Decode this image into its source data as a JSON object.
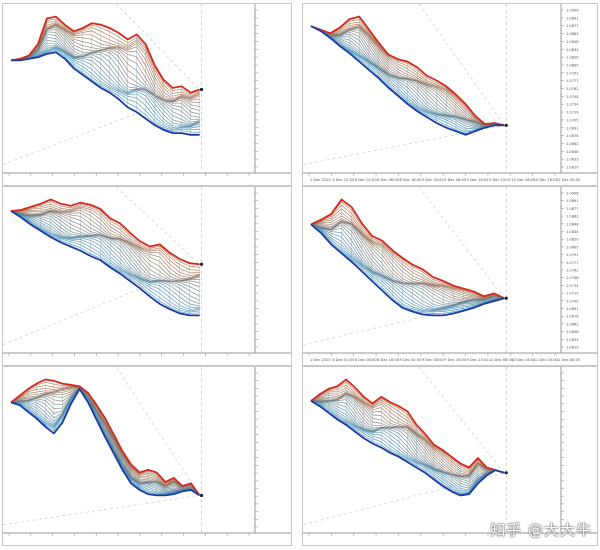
{
  "watermark": "知乎 @大大牛",
  "chart_data": [
    {
      "type": "line",
      "panel": "top-left",
      "series": [
        {
          "values": [
            1.0875,
            1.0876,
            1.0878,
            1.0885,
            1.0901,
            1.0902,
            1.0897,
            1.0893,
            1.0895,
            1.0898,
            1.0897,
            1.0895,
            1.0892,
            1.0888,
            1.0891,
            1.0885,
            1.0872,
            1.0863,
            1.0858,
            1.0859,
            1.0855,
            1.0857
          ]
        },
        {
          "values": [
            1.0875,
            1.0875,
            1.0876,
            1.0877,
            1.0879,
            1.088,
            1.0876,
            1.087,
            1.0866,
            1.0862,
            1.0858,
            1.0855,
            1.0851,
            1.0846,
            1.0843,
            1.0839,
            1.0835,
            1.0832,
            1.083,
            1.083,
            1.0829,
            1.0829
          ]
        }
      ]
    },
    {
      "type": "line",
      "panel": "top-right",
      "yticks": [
        "1.0906",
        "1.0891",
        "1.0877",
        "1.0863",
        "1.0848",
        "1.0834",
        "1.0820",
        "1.0805",
        "1.0791",
        "1.0777",
        "1.0762",
        "1.0748",
        "1.0734",
        "1.0719",
        "1.0705",
        "1.0691",
        "1.0676",
        "1.0662",
        "1.0648",
        "1.0633",
        "1.0619",
        "1.0605"
      ],
      "xticks": [
        "1 Dec 2020",
        "3 Dec 22:00",
        "8 Dec 01:00",
        "8 Dec 08:00",
        "8 Dec 16:00",
        "9 Dec 00:00",
        "9 Dec 08:00",
        "9 Dec 16:00",
        "9 Dec 23:00",
        "10 Dec 08:00",
        "10 Dec 16:00",
        "11 Dec 00:00"
      ],
      "series": [
        {
          "values": [
            1.0874,
            1.0871,
            1.0868,
            1.0873,
            1.088,
            1.0882,
            1.0871,
            1.086,
            1.085,
            1.0846,
            1.0844,
            1.0839,
            1.0832,
            1.0828,
            1.0823,
            1.0816,
            1.0808,
            1.0798,
            1.0791,
            1.0792,
            1.079
          ]
        },
        {
          "values": [
            1.0874,
            1.087,
            1.0864,
            1.0857,
            1.0851,
            1.0844,
            1.0837,
            1.083,
            1.0822,
            1.0815,
            1.0808,
            1.0802,
            1.0797,
            1.0792,
            1.0788,
            1.0785,
            1.0782,
            1.0785,
            1.0788,
            1.079,
            1.079
          ]
        }
      ]
    },
    {
      "type": "line",
      "panel": "middle-left",
      "series": [
        {
          "values": [
            1.2145,
            1.2146,
            1.2149,
            1.2152,
            1.2156,
            1.2152,
            1.215,
            1.2153,
            1.2151,
            1.2147,
            1.2138,
            1.2133,
            1.2124,
            1.2116,
            1.2111,
            1.2113,
            1.2105,
            1.2099,
            1.2095,
            1.2094
          ]
        },
        {
          "values": [
            1.2145,
            1.2139,
            1.2132,
            1.2126,
            1.212,
            1.2115,
            1.2111,
            1.2107,
            1.2102,
            1.2098,
            1.2091,
            1.2085,
            1.2078,
            1.2071,
            1.2063,
            1.2056,
            1.2051,
            1.2047,
            1.2045,
            1.2045
          ]
        }
      ]
    },
    {
      "type": "line",
      "panel": "middle-right",
      "yticks": [
        "1.0906",
        "1.0891",
        "1.0877",
        "1.0863",
        "1.0848",
        "1.0834",
        "1.0820",
        "1.0805",
        "1.0791",
        "1.0777",
        "1.0762",
        "1.0748",
        "1.0734",
        "1.0719",
        "1.0705",
        "1.0691",
        "1.0676",
        "1.0662",
        "1.0648",
        "1.0633",
        "1.0619",
        "1.0605"
      ],
      "xticks": [
        "1 Dec 2020",
        "8 Dec 01:00",
        "8 Dec 08:00",
        "8 Dec 16:00",
        "9 Dec 00:00",
        "9 Dec 08:00",
        "9 Dec 16:00",
        "9 Dec 23:00",
        "10 Dec 08:00",
        "10 Dec 16:00",
        "11 Dec 00:00",
        "11 Dec 08:00"
      ],
      "series": [
        {
          "values": [
            1.0867,
            1.0872,
            1.0878,
            1.0893,
            1.0885,
            1.0868,
            1.0855,
            1.085,
            1.084,
            1.0832,
            1.0825,
            1.082,
            1.0812,
            1.0808,
            1.0803,
            1.08,
            1.0797,
            1.0792,
            1.0795,
            1.079
          ]
        },
        {
          "values": [
            1.0867,
            1.0858,
            1.0846,
            1.0837,
            1.0828,
            1.0818,
            1.0808,
            1.0798,
            1.0788,
            1.078,
            1.0776,
            1.0773,
            1.0772,
            1.0772,
            1.0774,
            1.0777,
            1.078,
            1.0784,
            1.0787,
            1.079
          ]
        }
      ]
    },
    {
      "type": "line",
      "panel": "bottom-left",
      "series": [
        {
          "values": [
            1.1898,
            1.1903,
            1.1908,
            1.1912,
            1.1915,
            1.1914,
            1.1912,
            1.1911,
            1.191,
            1.1905,
            1.1896,
            1.1886,
            1.1874,
            1.1862,
            1.1852,
            1.1846,
            1.1848,
            1.1846,
            1.1839,
            1.1842,
            1.1836,
            1.1838,
            1.1829
          ]
        },
        {
          "values": [
            1.1898,
            1.1896,
            1.1891,
            1.1886,
            1.188,
            1.1875,
            1.1883,
            1.1897,
            1.1908,
            1.1898,
            1.1885,
            1.1872,
            1.186,
            1.1848,
            1.1838,
            1.1833,
            1.183,
            1.1829,
            1.1829,
            1.183,
            1.1832,
            1.1833,
            1.1829
          ]
        }
      ]
    },
    {
      "type": "line",
      "panel": "bottom-right",
      "series": [
        {
          "values": [
            1.128,
            1.1285,
            1.1289,
            1.1291,
            1.1296,
            1.129,
            1.1283,
            1.1278,
            1.1283,
            1.1279,
            1.1276,
            1.1272,
            1.1262,
            1.1255,
            1.1247,
            1.1243,
            1.1238,
            1.1233,
            1.123,
            1.1237,
            1.123,
            1.1228,
            1.1226
          ]
        },
        {
          "values": [
            1.128,
            1.1276,
            1.1271,
            1.1266,
            1.1262,
            1.1257,
            1.1252,
            1.1248,
            1.1245,
            1.1241,
            1.1238,
            1.1234,
            1.123,
            1.1226,
            1.1221,
            1.1216,
            1.1212,
            1.1209,
            1.121,
            1.1218,
            1.1224,
            1.1228,
            1.1226
          ]
        }
      ]
    }
  ]
}
